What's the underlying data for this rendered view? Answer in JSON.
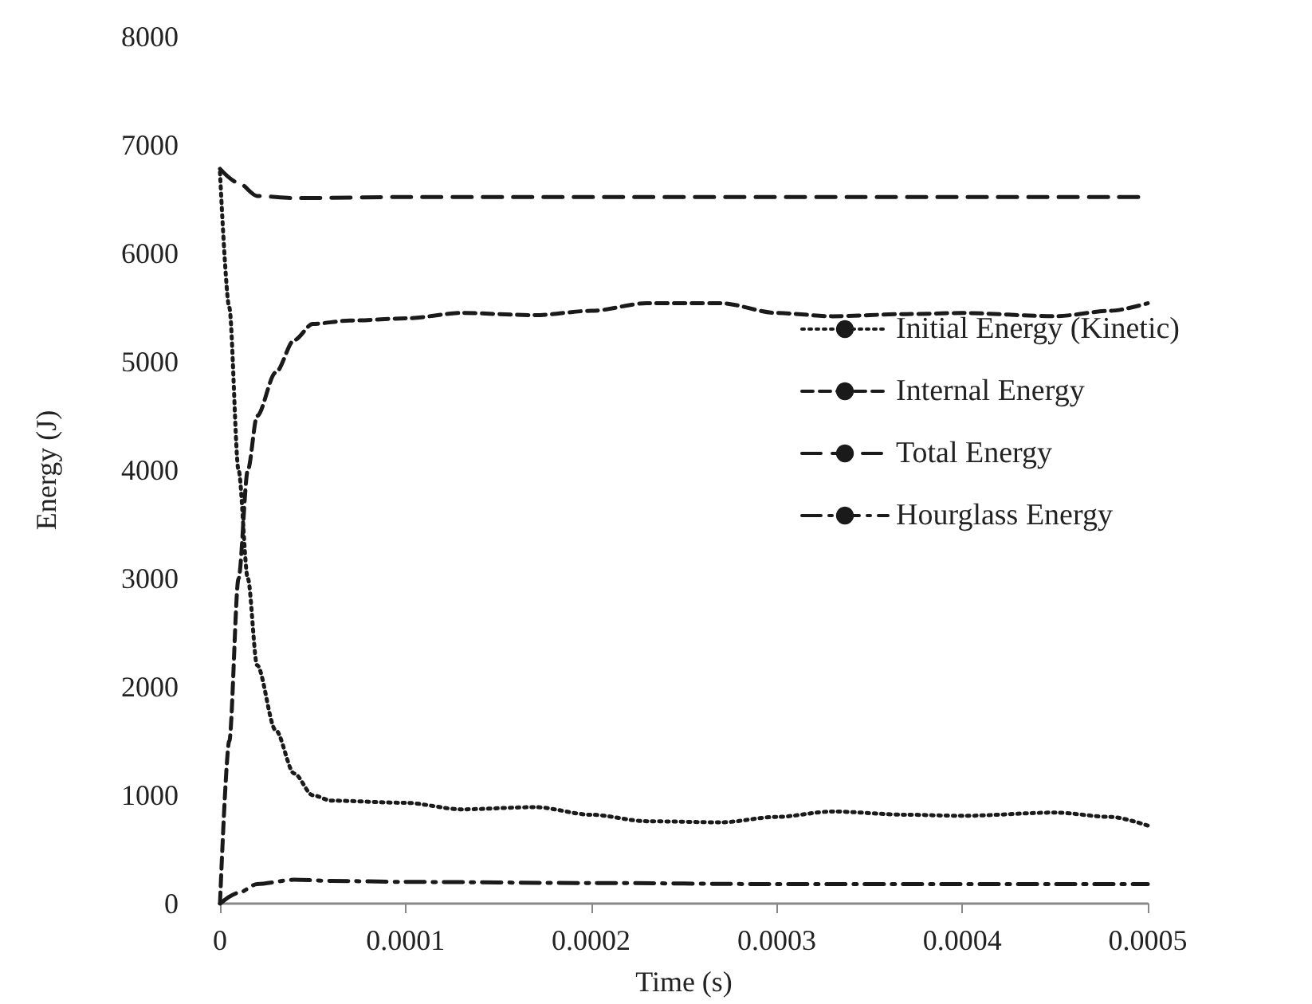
{
  "chart_data": {
    "type": "line",
    "xlabel": "Time (s)",
    "ylabel": "Energy (J)",
    "xlim": [
      0,
      0.0005
    ],
    "xticks": [
      0,
      0.0001,
      0.0002,
      0.0003,
      0.0004,
      0.0005
    ],
    "ylim": [
      0,
      8000
    ],
    "yticks": [
      0,
      1000,
      2000,
      3000,
      4000,
      5000,
      6000,
      7000,
      8000
    ],
    "grid": false,
    "legend": "right",
    "marker": "none",
    "series": [
      {
        "name": "Initial Energy (Kinetic)",
        "color": "#1a1a1a",
        "line_style": "dotted",
        "x": [
          0,
          5e-06,
          1e-05,
          1.5e-05,
          2e-05,
          3e-05,
          4e-05,
          5e-05,
          6e-05,
          0.0001,
          0.00013,
          0.00017,
          0.0002,
          0.00023,
          0.00027,
          0.0003,
          0.00033,
          0.00037,
          0.0004,
          0.00045,
          0.00048,
          0.0005
        ],
        "values": [
          6750,
          5500,
          4000,
          3000,
          2200,
          1600,
          1200,
          1000,
          950,
          930,
          870,
          890,
          820,
          760,
          750,
          800,
          850,
          820,
          810,
          840,
          800,
          720
        ]
      },
      {
        "name": "Internal Energy",
        "color": "#1a1a1a",
        "line_style": "dashed",
        "x": [
          0,
          5e-06,
          1e-05,
          1.5e-05,
          2e-05,
          3e-05,
          4e-05,
          5e-05,
          7e-05,
          0.0001,
          0.00013,
          0.00017,
          0.0002,
          0.00023,
          0.00027,
          0.0003,
          0.00033,
          0.00037,
          0.0004,
          0.00045,
          0.00048,
          0.0005
        ],
        "values": [
          0,
          1500,
          3000,
          4000,
          4500,
          4900,
          5200,
          5350,
          5380,
          5400,
          5450,
          5430,
          5470,
          5540,
          5540,
          5450,
          5420,
          5440,
          5450,
          5420,
          5470,
          5540
        ]
      },
      {
        "name": "Total Energy",
        "color": "#1a1a1a",
        "line_style": "dashed",
        "x": [
          0,
          1e-05,
          2e-05,
          4e-05,
          0.0001,
          0.0005
        ],
        "values": [
          6780,
          6650,
          6530,
          6510,
          6520,
          6520
        ]
      },
      {
        "name": "Hourglass Energy",
        "color": "#1a1a1a",
        "line_style": "dashed",
        "x": [
          0,
          1e-05,
          2e-05,
          4e-05,
          6e-05,
          0.0001,
          0.0002,
          0.0003,
          0.0005
        ],
        "values": [
          0,
          100,
          180,
          220,
          210,
          200,
          190,
          180,
          180
        ]
      }
    ]
  }
}
